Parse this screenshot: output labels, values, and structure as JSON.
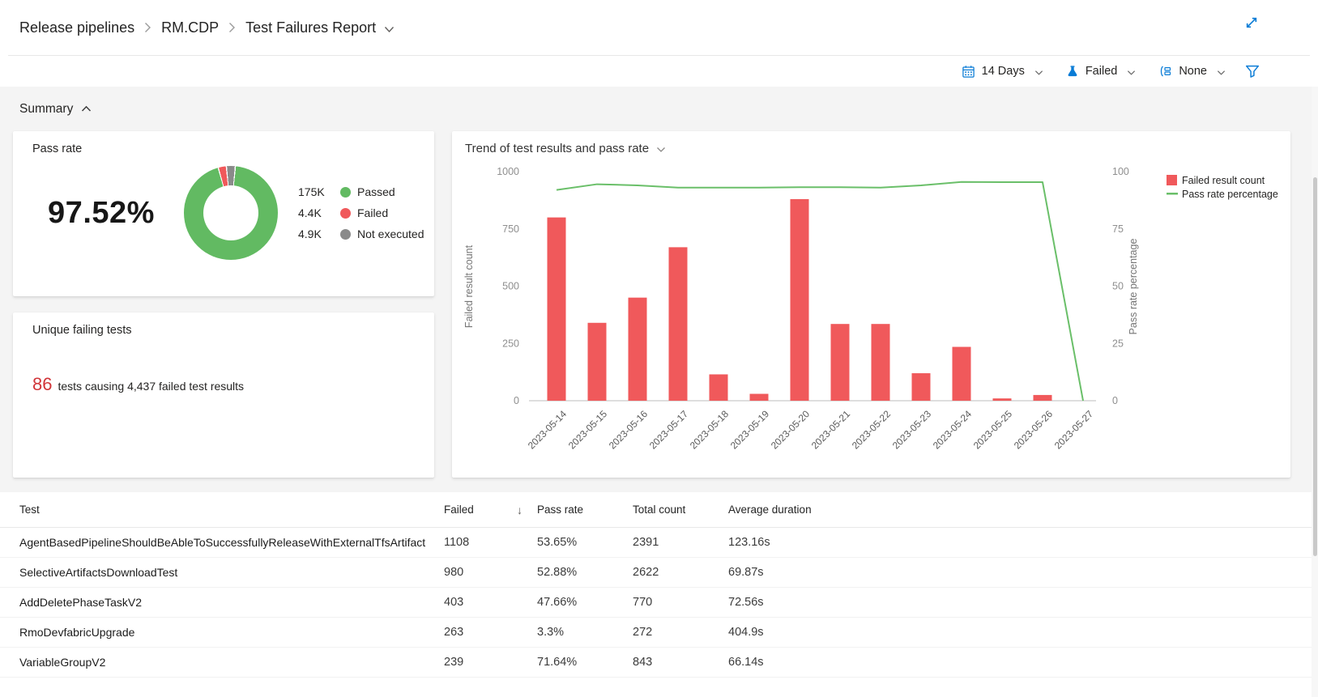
{
  "breadcrumb": {
    "items": [
      "Release pipelines",
      "RM.CDP",
      "Test Failures Report"
    ]
  },
  "toolbar": {
    "period_label": "14 Days",
    "outcome_label": "Failed",
    "groupby_label": "None"
  },
  "summary": {
    "title": "Summary"
  },
  "pass_rate_card": {
    "title": "Pass rate",
    "value": "97.52%",
    "legend": [
      {
        "count": "175K",
        "label": "Passed",
        "value": 175000,
        "color": "#62ba62"
      },
      {
        "count": "4.4K",
        "label": "Failed",
        "value": 4400,
        "color": "#f0595b"
      },
      {
        "count": "4.9K",
        "label": "Not executed",
        "value": 4900,
        "color": "#8a8a8a"
      }
    ]
  },
  "unique_failing_card": {
    "title": "Unique failing tests",
    "count": "86",
    "description": "tests causing 4,437 failed test results"
  },
  "chart_data": {
    "type": "bar",
    "title": "Trend of test results and pass rate",
    "categories": [
      "2023-05-14",
      "2023-05-15",
      "2023-05-16",
      "2023-05-17",
      "2023-05-18",
      "2023-05-19",
      "2023-05-20",
      "2023-05-21",
      "2023-05-22",
      "2023-05-23",
      "2023-05-24",
      "2023-05-25",
      "2023-05-26",
      "2023-05-27"
    ],
    "series": [
      {
        "name": "Failed result count",
        "type": "bar",
        "axis": "left",
        "color": "#f0595b",
        "values": [
          800,
          340,
          450,
          670,
          115,
          30,
          880,
          335,
          335,
          120,
          235,
          10,
          25,
          0
        ]
      },
      {
        "name": "Pass rate percentage",
        "type": "line",
        "axis": "right",
        "color": "#6abf69",
        "values": [
          92,
          94.5,
          94,
          93,
          93,
          93,
          93.2,
          93.2,
          93,
          94,
          95.5,
          95.4,
          95.4,
          0
        ]
      }
    ],
    "left_axis": {
      "label": "Failed result count",
      "min": 0,
      "max": 1000,
      "ticks": [
        0,
        250,
        500,
        750,
        1000
      ]
    },
    "right_axis": {
      "label": "Pass rate percentage",
      "min": 0,
      "max": 100,
      "ticks": [
        0,
        25,
        50,
        75,
        100
      ]
    },
    "grid": false,
    "legend_position": "top-right"
  },
  "table": {
    "columns": [
      "Test",
      "Failed",
      "Pass rate",
      "Total count",
      "Average duration"
    ],
    "sort": {
      "column": "Failed",
      "direction": "descending",
      "icon": "↓"
    },
    "rows": [
      {
        "test": "AgentBasedPipelineShouldBeAbleToSuccessfullyReleaseWithExternalTfsArtifact",
        "failed": "1108",
        "pass_rate": "53.65%",
        "total_count": "2391",
        "average_duration": "123.16s"
      },
      {
        "test": "SelectiveArtifactsDownloadTest",
        "failed": "980",
        "pass_rate": "52.88%",
        "total_count": "2622",
        "average_duration": "69.87s"
      },
      {
        "test": "AddDeletePhaseTaskV2",
        "failed": "403",
        "pass_rate": "47.66%",
        "total_count": "770",
        "average_duration": "72.56s"
      },
      {
        "test": "RmoDevfabricUpgrade",
        "failed": "263",
        "pass_rate": "3.3%",
        "total_count": "272",
        "average_duration": "404.9s"
      },
      {
        "test": "VariableGroupV2",
        "failed": "239",
        "pass_rate": "71.64%",
        "total_count": "843",
        "average_duration": "66.14s"
      }
    ]
  },
  "colors": {
    "accent": "#0a7cd6",
    "fail_text_red": "#d13438",
    "bar_red": "#f0595b",
    "line_green": "#6abf69"
  }
}
